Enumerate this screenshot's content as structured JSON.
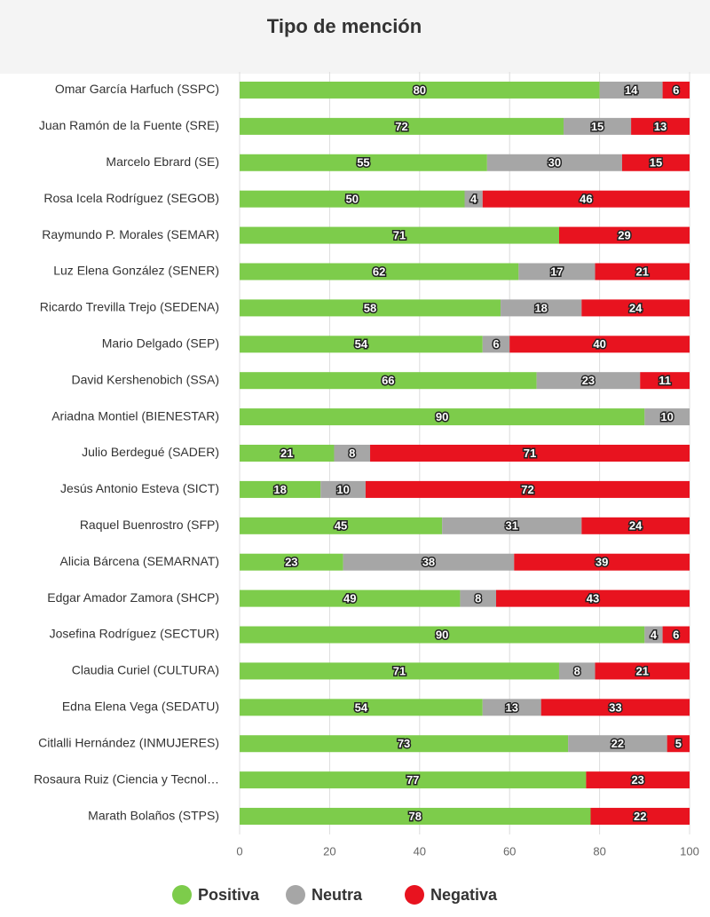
{
  "chart_data": {
    "type": "stacked-bar-horizontal",
    "title": "Tipo de mención",
    "categories": [
      "Omar García Harfuch (SSPC)",
      "Juan Ramón de la Fuente (SRE)",
      "Marcelo Ebrard (SE)",
      "Rosa Icela Rodríguez (SEGOB)",
      "Raymundo P. Morales (SEMAR)",
      "Luz Elena González (SENER)",
      "Ricardo Trevilla Trejo (SEDENA)",
      "Mario Delgado (SEP)",
      "David Kershenobich (SSA)",
      "Ariadna Montiel (BIENESTAR)",
      "Julio Berdegué (SADER)",
      "Jesús Antonio Esteva (SICT)",
      "Raquel Buenrostro (SFP)",
      "Alicia Bárcena (SEMARNAT)",
      "Edgar Amador Zamora (SHCP)",
      "Josefina Rodríguez (SECTUR)",
      "Claudia Curiel (CULTURA)",
      "Edna Elena Vega (SEDATU)",
      "Citlalli Hernández (INMUJERES)",
      "Rosaura Ruiz (Ciencia y Tecnol…",
      "Marath Bolaños (STPS)"
    ],
    "series": [
      {
        "name": "Positiva",
        "color": "#7dcc4b",
        "values": [
          80,
          72,
          55,
          50,
          71,
          62,
          58,
          54,
          66,
          90,
          21,
          18,
          45,
          23,
          49,
          90,
          71,
          54,
          73,
          77,
          78
        ]
      },
      {
        "name": "Neutra",
        "color": "#a6a6a6",
        "values": [
          14,
          15,
          30,
          4,
          null,
          17,
          18,
          6,
          23,
          10,
          8,
          10,
          31,
          38,
          8,
          4,
          8,
          13,
          22,
          null,
          null
        ]
      },
      {
        "name": "Negativa",
        "color": "#e8131f",
        "values": [
          6,
          13,
          15,
          46,
          29,
          21,
          24,
          40,
          11,
          null,
          71,
          72,
          24,
          39,
          43,
          6,
          21,
          33,
          5,
          23,
          22
        ]
      }
    ],
    "xlim": [
      0,
      100
    ],
    "xticks": [
      0,
      20,
      40,
      60,
      80,
      100
    ],
    "grid": true
  }
}
